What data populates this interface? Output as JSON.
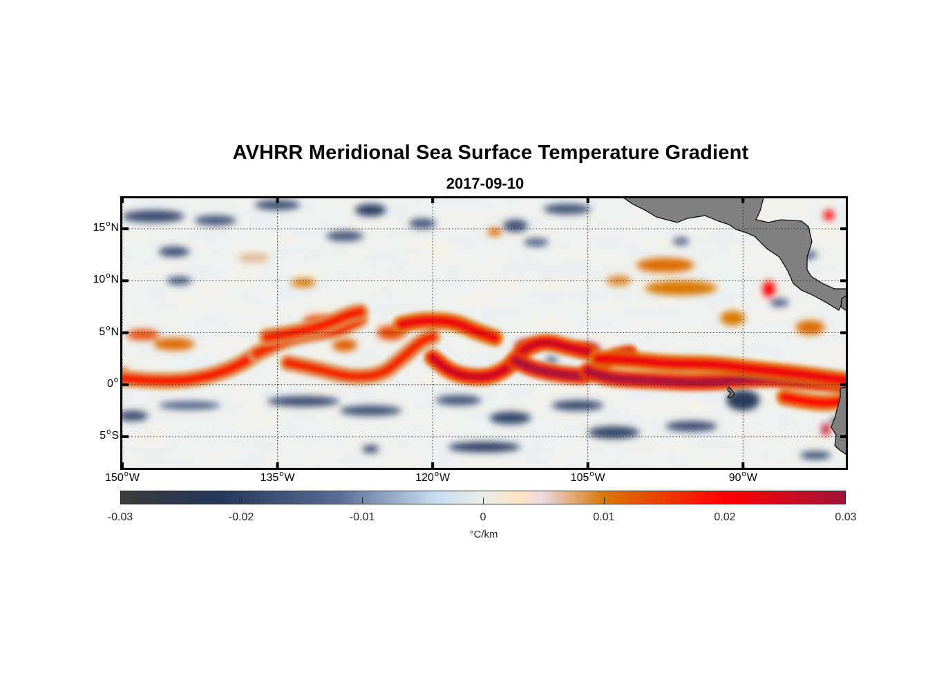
{
  "chart_data": {
    "type": "heatmap",
    "title": "AVHRR Meridional Sea Surface Temperature Gradient",
    "subtitle": "2017-09-10",
    "projection": "equirectangular",
    "lon_range": [
      -150,
      -80
    ],
    "lat_range": [
      -8,
      18
    ],
    "x_ticks": [
      {
        "value": -150,
        "num": "150",
        "hemi": "W"
      },
      {
        "value": -135,
        "num": "135",
        "hemi": "W"
      },
      {
        "value": -120,
        "num": "120",
        "hemi": "W"
      },
      {
        "value": -105,
        "num": "105",
        "hemi": "W"
      },
      {
        "value": -90,
        "num": "90",
        "hemi": "W"
      }
    ],
    "y_ticks": [
      {
        "value": 15,
        "num": "15",
        "hemi": "N"
      },
      {
        "value": 10,
        "num": "10",
        "hemi": "N"
      },
      {
        "value": 5,
        "num": "5",
        "hemi": "N"
      },
      {
        "value": 0,
        "num": "0",
        "hemi": ""
      },
      {
        "value": -5,
        "num": "5",
        "hemi": "S"
      }
    ],
    "grid": "dotted",
    "colorbar": {
      "label": "°C/km",
      "range": [
        -0.03,
        0.03
      ],
      "ticks": [
        {
          "value": -0.03,
          "label": "-0.03"
        },
        {
          "value": -0.02,
          "label": "-0.02"
        },
        {
          "value": -0.01,
          "label": "-0.01"
        },
        {
          "value": 0,
          "label": "0"
        },
        {
          "value": 0.01,
          "label": "0.01"
        },
        {
          "value": 0.02,
          "label": "0.02"
        },
        {
          "value": 0.03,
          "label": "0.03"
        }
      ],
      "stops": [
        {
          "v": -0.03,
          "c": "#3c3c3c"
        },
        {
          "v": -0.022,
          "c": "#243759"
        },
        {
          "v": -0.012,
          "c": "#5a6b94"
        },
        {
          "v": -0.004,
          "c": "#c6dbf0"
        },
        {
          "v": 0.0,
          "c": "#eaeeea"
        },
        {
          "v": 0.003,
          "c": "#fde4c0"
        },
        {
          "v": 0.005,
          "c": "#ecd8e0"
        },
        {
          "v": 0.01,
          "c": "#d97706"
        },
        {
          "v": 0.02,
          "c": "#ff0000"
        },
        {
          "v": 0.03,
          "c": "#a3143a"
        }
      ],
      "placement": "bottom"
    },
    "features": {
      "front_lines": [
        {
          "name": "equatorial-front-south",
          "value": 0.018,
          "points": [
            [
              -150,
              0.6
            ],
            [
              -146,
              0.3
            ],
            [
              -143,
              0.5
            ],
            [
              -140,
              1.3
            ],
            [
              -138,
              2.3
            ],
            [
              -137,
              3.0
            ]
          ]
        },
        {
          "name": "equatorial-front-south",
          "value": 0.017,
          "points": [
            [
              -137,
              3.0
            ],
            [
              -134,
              4.4
            ],
            [
              -131,
              5.0
            ],
            [
              -129,
              5.2
            ],
            [
              -127,
              6.3
            ]
          ]
        },
        {
          "name": "tiw-cusp-1",
          "value": 0.018,
          "points": [
            [
              -136,
              4.6
            ],
            [
              -134,
              4.9
            ],
            [
              -131,
              5.5
            ],
            [
              -128,
              6.8
            ],
            [
              -127,
              7.0
            ]
          ]
        },
        {
          "name": "tiw-cusp-1-south",
          "value": 0.017,
          "points": [
            [
              -134,
              2.1
            ],
            [
              -131,
              1.5
            ],
            [
              -128,
              0.7
            ],
            [
              -125,
              0.9
            ],
            [
              -123,
              2.5
            ],
            [
              -121,
              4.3
            ],
            [
              -120,
              4.6
            ]
          ]
        },
        {
          "name": "tiw-cusp-2",
          "value": 0.022,
          "points": [
            [
              -123,
              5.8
            ],
            [
              -121,
              6.2
            ],
            [
              -118,
              6.1
            ],
            [
              -116,
              5.2
            ],
            [
              -114,
              4.5
            ]
          ]
        },
        {
          "name": "tiw-cusp-2-south",
          "value": 0.026,
          "points": [
            [
              -120,
              2.6
            ],
            [
              -118,
              1.0
            ],
            [
              -115,
              0.6
            ],
            [
              -113,
              1.4
            ],
            [
              -112,
              2.4
            ],
            [
              -111,
              3.6
            ],
            [
              -109,
              4.2
            ],
            [
              -107,
              3.6
            ],
            [
              -105,
              3.2
            ]
          ]
        },
        {
          "name": "tiw-cusp-3-south",
          "value": 0.03,
          "points": [
            [
              -112,
              2.3
            ],
            [
              -110,
              1.4
            ],
            [
              -107,
              0.9
            ],
            [
              -105,
              0.8
            ],
            [
              -104,
              1.8
            ],
            [
              -103,
              2.6
            ],
            [
              -101,
              3.0
            ]
          ]
        },
        {
          "name": "east-front",
          "value": 0.03,
          "points": [
            [
              -105,
              1.3
            ],
            [
              -103,
              0.6
            ],
            [
              -99,
              0.4
            ],
            [
              -95,
              0.2
            ],
            [
              -92,
              0.3
            ],
            [
              -90,
              0.5
            ],
            [
              -87,
              0.6
            ],
            [
              -84,
              0.3
            ],
            [
              -80,
              0.0
            ]
          ]
        },
        {
          "name": "east-front-north",
          "value": 0.022,
          "points": [
            [
              -104,
              2.5
            ],
            [
              -101,
              2.4
            ],
            [
              -97,
              2.0
            ],
            [
              -93,
              2.0
            ],
            [
              -89,
              1.5
            ],
            [
              -85,
              1.1
            ],
            [
              -80,
              0.4
            ]
          ]
        },
        {
          "name": "east-front-lower",
          "value": 0.02,
          "points": [
            [
              -86,
              -1.2
            ],
            [
              -84,
              -1.6
            ],
            [
              -82,
              -1.8
            ],
            [
              -80.5,
              -1.6
            ]
          ]
        }
      ],
      "blobs": [
        {
          "lon": -148,
          "lat": 4.8,
          "rx": 1.6,
          "ry": 0.5,
          "value": 0.014
        },
        {
          "lon": -145,
          "lat": 3.9,
          "rx": 2.0,
          "ry": 0.6,
          "value": 0.011
        },
        {
          "lon": -131,
          "lat": 6.1,
          "rx": 1.5,
          "ry": 0.6,
          "value": 0.014
        },
        {
          "lon": -128.5,
          "lat": 3.8,
          "rx": 1.2,
          "ry": 0.6,
          "value": 0.012
        },
        {
          "lon": -124,
          "lat": 5.0,
          "rx": 1.4,
          "ry": 0.7,
          "value": 0.014
        },
        {
          "lon": -111,
          "lat": 3.7,
          "rx": 1.0,
          "ry": 0.6,
          "value": 0.028
        },
        {
          "lon": -105,
          "lat": 3.4,
          "rx": 1.2,
          "ry": 0.6,
          "value": 0.028
        },
        {
          "lon": -87.5,
          "lat": 9.2,
          "rx": 0.6,
          "ry": 0.8,
          "value": 0.02
        },
        {
          "lon": -97.5,
          "lat": 11.5,
          "rx": 2.8,
          "ry": 0.7,
          "value": 0.011
        },
        {
          "lon": -96,
          "lat": 9.3,
          "rx": 3.5,
          "ry": 0.7,
          "value": 0.01
        },
        {
          "lon": -102,
          "lat": 10.0,
          "rx": 1.2,
          "ry": 0.5,
          "value": 0.009
        },
        {
          "lon": -91,
          "lat": 6.4,
          "rx": 1.2,
          "ry": 0.7,
          "value": 0.01
        },
        {
          "lon": -81.7,
          "lat": 16.3,
          "rx": 0.5,
          "ry": 0.5,
          "value": 0.02
        },
        {
          "lon": -83.5,
          "lat": 5.5,
          "rx": 1.4,
          "ry": 0.7,
          "value": 0.011
        },
        {
          "lon": -137.3,
          "lat": 12.2,
          "rx": 1.5,
          "ry": 0.4,
          "value": 0.007
        },
        {
          "lon": -132.5,
          "lat": 9.8,
          "rx": 1.2,
          "ry": 0.4,
          "value": 0.01
        },
        {
          "lon": -114,
          "lat": 14.7,
          "rx": 0.7,
          "ry": 0.4,
          "value": 0.011
        },
        {
          "lon": -82,
          "lat": -4.3,
          "rx": 0.4,
          "ry": 0.6,
          "value": 0.026
        },
        {
          "lon": -150,
          "lat": 1.3,
          "rx": 0.6,
          "ry": 0.3,
          "value": 0.012
        },
        {
          "lon": -147,
          "lat": 16.2,
          "rx": 3.0,
          "ry": 0.6,
          "value": -0.018
        },
        {
          "lon": -141,
          "lat": 15.8,
          "rx": 2.0,
          "ry": 0.5,
          "value": -0.016
        },
        {
          "lon": -135,
          "lat": 17.3,
          "rx": 2.2,
          "ry": 0.5,
          "value": -0.017
        },
        {
          "lon": -126,
          "lat": 16.8,
          "rx": 1.5,
          "ry": 0.6,
          "value": -0.02
        },
        {
          "lon": -121,
          "lat": 15.5,
          "rx": 1.3,
          "ry": 0.5,
          "value": -0.016
        },
        {
          "lon": -112,
          "lat": 15.3,
          "rx": 1.2,
          "ry": 0.6,
          "value": -0.017
        },
        {
          "lon": -107,
          "lat": 16.9,
          "rx": 2.3,
          "ry": 0.5,
          "value": -0.017
        },
        {
          "lon": -128.5,
          "lat": 14.3,
          "rx": 1.8,
          "ry": 0.5,
          "value": -0.016
        },
        {
          "lon": -145,
          "lat": 12.8,
          "rx": 1.5,
          "ry": 0.5,
          "value": -0.017
        },
        {
          "lon": -144.5,
          "lat": 10.0,
          "rx": 1.2,
          "ry": 0.4,
          "value": -0.016
        },
        {
          "lon": -110,
          "lat": 13.7,
          "rx": 1.2,
          "ry": 0.4,
          "value": -0.014
        },
        {
          "lon": -96,
          "lat": 13.8,
          "rx": 0.8,
          "ry": 0.4,
          "value": -0.012
        },
        {
          "lon": -84,
          "lat": 12.5,
          "rx": 1.2,
          "ry": 0.4,
          "value": -0.015
        },
        {
          "lon": -86.5,
          "lat": 7.9,
          "rx": 0.9,
          "ry": 0.4,
          "value": -0.014
        },
        {
          "lon": -143.5,
          "lat": -2.0,
          "rx": 3.0,
          "ry": 0.4,
          "value": -0.014
        },
        {
          "lon": -132.5,
          "lat": -1.6,
          "rx": 3.5,
          "ry": 0.5,
          "value": -0.018
        },
        {
          "lon": -126,
          "lat": -2.5,
          "rx": 3.0,
          "ry": 0.5,
          "value": -0.017
        },
        {
          "lon": -117.5,
          "lat": -1.5,
          "rx": 2.2,
          "ry": 0.5,
          "value": -0.016
        },
        {
          "lon": -112.5,
          "lat": -3.2,
          "rx": 2.0,
          "ry": 0.6,
          "value": -0.019
        },
        {
          "lon": -115,
          "lat": -6.0,
          "rx": 3.5,
          "ry": 0.5,
          "value": -0.02
        },
        {
          "lon": -106,
          "lat": -2.0,
          "rx": 2.5,
          "ry": 0.5,
          "value": -0.018
        },
        {
          "lon": -102.5,
          "lat": -4.6,
          "rx": 2.5,
          "ry": 0.6,
          "value": -0.019
        },
        {
          "lon": -95,
          "lat": -4.0,
          "rx": 2.5,
          "ry": 0.5,
          "value": -0.018
        },
        {
          "lon": -90,
          "lat": -1.5,
          "rx": 1.6,
          "ry": 1.0,
          "value": -0.021
        },
        {
          "lon": -149,
          "lat": -3.0,
          "rx": 1.5,
          "ry": 0.5,
          "value": -0.018
        },
        {
          "lon": -126,
          "lat": -6.2,
          "rx": 0.8,
          "ry": 0.4,
          "value": -0.017
        },
        {
          "lon": -83,
          "lat": -6.8,
          "rx": 1.5,
          "ry": 0.4,
          "value": -0.017
        },
        {
          "lon": -81,
          "lat": -3.5,
          "rx": 0.6,
          "ry": 0.3,
          "value": -0.02
        },
        {
          "lon": -108.5,
          "lat": 2.4,
          "rx": 0.6,
          "ry": 0.3,
          "value": -0.017
        }
      ]
    },
    "land": [
      {
        "name": "central-america-mexico",
        "color": "#808080"
      },
      {
        "name": "south-america-coast",
        "color": "#808080"
      },
      {
        "name": "galapagos-islands",
        "color": "#808080"
      }
    ]
  }
}
